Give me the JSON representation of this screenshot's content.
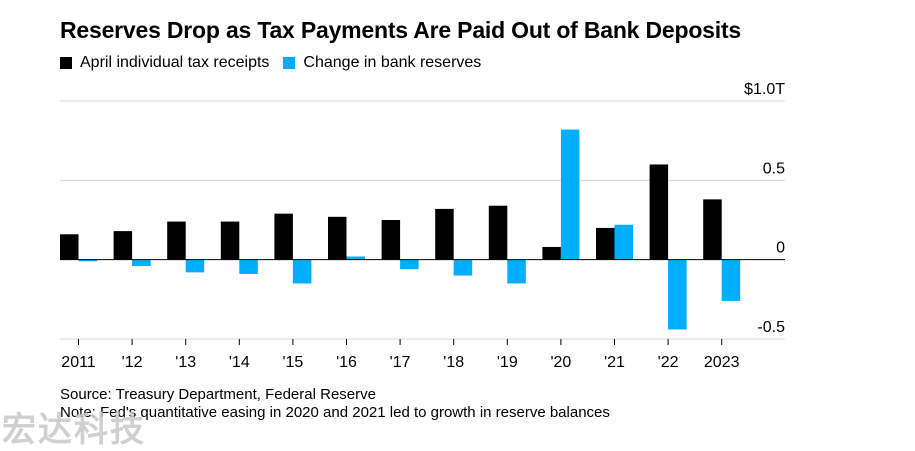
{
  "title": "Reserves Drop as Tax Payments Are Paid Out of Bank Deposits",
  "legend": [
    {
      "label": "April individual tax receipts",
      "color": "#000000"
    },
    {
      "label": "Change in bank reserves",
      "color": "#00aeff"
    }
  ],
  "source": "Source: Treasury Department, Federal Reserve",
  "note": "Note: Fed's quantitative easing in 2020 and 2021 led to growth in reserve balances",
  "watermark": "宏达科技",
  "chart_data": {
    "type": "bar",
    "categories": [
      "2011",
      "'12",
      "'13",
      "'14",
      "'15",
      "'16",
      "'17",
      "'18",
      "'19",
      "'20",
      "'21",
      "'22",
      "2023"
    ],
    "series": [
      {
        "name": "April individual tax receipts",
        "color": "#000000",
        "values": [
          0.16,
          0.18,
          0.24,
          0.24,
          0.29,
          0.27,
          0.25,
          0.32,
          0.34,
          0.08,
          0.2,
          0.6,
          0.38
        ]
      },
      {
        "name": "Change in bank reserves",
        "color": "#00aeff",
        "values": [
          -0.01,
          -0.04,
          -0.08,
          -0.09,
          -0.15,
          0.02,
          -0.06,
          -0.1,
          -0.15,
          0.82,
          0.22,
          -0.44,
          -0.26
        ]
      }
    ],
    "ylim": [
      -0.5,
      1.0
    ],
    "yticks": [
      1.0,
      0.5,
      0,
      -0.5
    ],
    "ytick_labels": [
      "$1.0T",
      "0.5",
      "0",
      "-0.5"
    ],
    "grid": true,
    "legend_position": "top-left"
  }
}
